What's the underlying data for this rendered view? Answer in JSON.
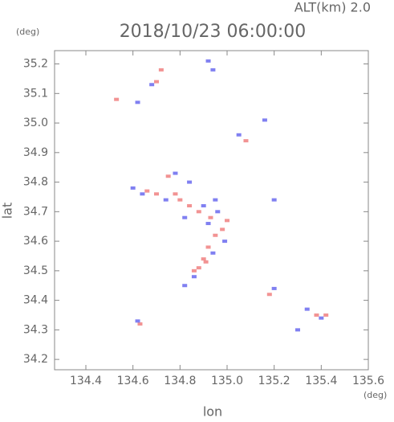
{
  "chart_data": {
    "type": "scatter",
    "title": "2018/10/23 06:00:00",
    "subtitle": "ALT(km) 2.0",
    "x_label": "lon",
    "y_label": "lat",
    "x_unit": "(deg)",
    "y_unit": "(deg)",
    "xlim": [
      134.267,
      135.6
    ],
    "ylim": [
      34.165,
      35.245
    ],
    "xticks": [
      134.4,
      134.6,
      134.8,
      {
        "value": 135.0,
        "label": "135.0"
      },
      135.2,
      135.4,
      135.6
    ],
    "yticks": [
      34.2,
      34.3,
      34.4,
      34.5,
      34.6,
      34.7,
      34.8,
      34.9,
      {
        "value": 35.0,
        "label": "35.0"
      },
      35.1,
      35.2
    ],
    "series": [
      {
        "color": "#f08080",
        "x": [
          134.53,
          134.72,
          134.7,
          134.66,
          134.7,
          134.78,
          134.8,
          134.84,
          134.88,
          134.93,
          135.0,
          134.98,
          134.95,
          134.92,
          134.9,
          134.88,
          134.86,
          134.91,
          135.18,
          135.38,
          135.42,
          134.63,
          135.08,
          134.75
        ],
        "y": [
          35.08,
          35.18,
          35.14,
          34.77,
          34.76,
          34.76,
          34.74,
          34.72,
          34.7,
          34.68,
          34.67,
          34.64,
          34.62,
          34.58,
          34.54,
          34.51,
          34.5,
          34.53,
          34.42,
          34.35,
          34.35,
          34.32,
          34.94,
          34.82
        ]
      },
      {
        "color": "#6a6aee",
        "x": [
          134.92,
          134.94,
          134.68,
          134.62,
          134.6,
          134.64,
          134.74,
          134.78,
          134.84,
          134.82,
          134.9,
          134.95,
          134.92,
          134.99,
          134.94,
          134.86,
          134.82,
          135.16,
          135.05,
          135.2,
          135.3,
          135.34,
          135.4,
          134.62,
          135.2,
          134.96
        ],
        "y": [
          35.21,
          35.18,
          35.13,
          35.07,
          34.78,
          34.76,
          34.74,
          34.83,
          34.8,
          34.68,
          34.72,
          34.74,
          34.66,
          34.6,
          34.56,
          34.48,
          34.45,
          35.01,
          34.96,
          34.74,
          34.3,
          34.37,
          34.34,
          34.33,
          34.44,
          34.7
        ]
      }
    ]
  }
}
